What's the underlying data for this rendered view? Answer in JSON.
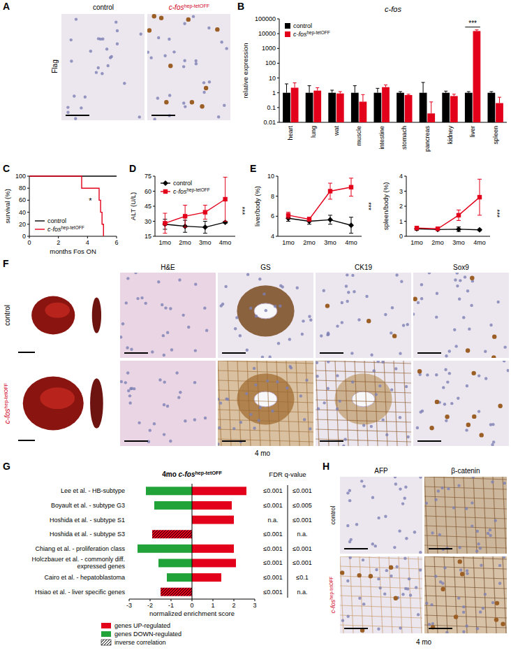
{
  "chart_data": [
    {
      "type": "bar",
      "panel_label": "B",
      "title": "c-fos",
      "y_label": "relative expression",
      "log": "y",
      "ylim": [
        0.01,
        100000
      ],
      "yticks": [
        0.01,
        0.1,
        1,
        10,
        100,
        1000,
        10000,
        100000
      ],
      "categories": [
        "heart",
        "lung",
        "wat",
        "muscle",
        "intestine",
        "stomach",
        "pancreas",
        "kidney",
        "liver",
        "spleen"
      ],
      "series": [
        {
          "name": "control",
          "color": "#000000",
          "values": [
            1,
            1,
            1,
            1,
            1,
            1,
            1,
            1,
            1,
            1
          ],
          "errors": [
            3,
            2,
            0.5,
            2,
            1,
            0.2,
            4,
            0.3,
            0.2,
            0.2
          ]
        },
        {
          "name": "c-fos hep-tetOFF",
          "color": "#e3001b",
          "values": [
            2.2,
            1.4,
            0.9,
            0.25,
            2.4,
            0.7,
            0.04,
            0.6,
            15000,
            0.2
          ],
          "errors": [
            2.5,
            0.8,
            0.3,
            0.5,
            1,
            0.1,
            0.2,
            0.2,
            3000,
            0.3
          ]
        }
      ],
      "legend": "upper left",
      "annotation": "***"
    },
    {
      "type": "line",
      "panel_label": "C",
      "x_label": "months Fos ON",
      "y_label": "survival (%)",
      "xlim": [
        0,
        6
      ],
      "xticks": [
        0,
        2,
        4,
        6
      ],
      "ylim": [
        0,
        100
      ],
      "yticks": [
        0,
        20,
        40,
        60,
        80,
        100
      ],
      "line_style": "step",
      "legend": "lower left",
      "annotation": "*",
      "series": [
        {
          "name": "control",
          "color": "#000000",
          "x": [
            0,
            6
          ],
          "values": [
            100,
            100
          ]
        },
        {
          "name": "c-fos hep-tetOFF",
          "color": "#e3001b",
          "x": [
            0,
            3.6,
            4.8,
            4.9,
            5,
            5.1
          ],
          "values": [
            100,
            80,
            60,
            40,
            20,
            0
          ]
        }
      ]
    },
    {
      "type": "line",
      "panel_label": "D",
      "y_label": "ALT (U/L)",
      "categories": [
        "1mo",
        "2mo",
        "3mo",
        "4mo"
      ],
      "ylim": [
        15,
        75
      ],
      "yticks": [
        15,
        30,
        45,
        60,
        75
      ],
      "legend": "upper left",
      "annotation": "***",
      "series": [
        {
          "name": "control",
          "color": "#000000",
          "marker": "diamond",
          "values": [
            27,
            25,
            24,
            29
          ],
          "errors": [
            5,
            6,
            6,
            1
          ]
        },
        {
          "name": "c-fos hep-tetOFF",
          "color": "#e3001b",
          "marker": "square",
          "values": [
            28,
            35,
            39,
            52
          ],
          "errors": [
            10,
            11,
            7,
            22
          ]
        }
      ]
    },
    {
      "type": "line",
      "panel_label": "E",
      "y_label": "liver/body (%)",
      "categories": [
        "1mo",
        "2mo",
        "3mo",
        "4mo"
      ],
      "ylim": [
        4,
        10
      ],
      "yticks": [
        4,
        6,
        8,
        10
      ],
      "annotation": "***",
      "series": [
        {
          "name": "control",
          "color": "#000000",
          "marker": "diamond",
          "values": [
            5.8,
            5.5,
            5.65,
            5.1
          ],
          "errors": [
            0.3,
            0.3,
            0.45,
            0.8
          ]
        },
        {
          "name": "c-fos hep-tetOFF",
          "color": "#e3001b",
          "marker": "square",
          "values": [
            6.1,
            5.7,
            8.5,
            8.9
          ],
          "errors": [
            0.3,
            0.2,
            0.8,
            0.9
          ]
        }
      ]
    },
    {
      "type": "line",
      "y_label": "spleen/body (%)",
      "categories": [
        "1mo",
        "2mo",
        "3mo",
        "4mo"
      ],
      "ylim": [
        0,
        4
      ],
      "yticks": [
        0,
        1,
        2,
        3,
        4
      ],
      "annotation": "***",
      "series": [
        {
          "name": "control",
          "color": "#000000",
          "marker": "diamond",
          "values": [
            0.5,
            0.45,
            0.47,
            0.43
          ],
          "errors": [
            0.1,
            0.05,
            0.15,
            0.05
          ]
        },
        {
          "name": "c-fos hep-tetOFF",
          "color": "#e3001b",
          "marker": "square",
          "values": [
            0.55,
            0.5,
            1.4,
            2.6
          ],
          "errors": [
            0.05,
            0.05,
            0.35,
            1.2
          ]
        }
      ]
    },
    {
      "type": "bar",
      "orientation": "horizontal",
      "panel_label": "G",
      "title": "4mo c-fos hep-tetOFF",
      "x_label": "normalized enrichment score",
      "xlim": [
        -3,
        3
      ],
      "xticks": [
        -3,
        -2,
        -1,
        0,
        1,
        2,
        3
      ],
      "categories": [
        "Lee et al. - HB-subtype",
        "Boyault et al. - subtype G3",
        "Hoshida et al. - subtype S1",
        "Hoshida et al. - subtype S3",
        "Chiang et al. - proliferation class",
        "Holczbauer et al. - commonly diff. expressed genes",
        "Cairo et al. - hepatoblastoma",
        "Hsiao et al. - liver specific genes"
      ],
      "series": [
        {
          "name": "genes UP-regulated",
          "color": "#e3001b",
          "values": [
            2.6,
            1.9,
            2.0,
            null,
            2.0,
            2.1,
            1.4,
            null
          ]
        },
        {
          "name": "genes DOWN-regulated",
          "color": "#22a33a",
          "values": [
            -2.2,
            -1.8,
            null,
            null,
            -2.6,
            -1.6,
            -1.2,
            null
          ]
        },
        {
          "name": "inverse correlation",
          "color": "#e3001b",
          "line_style": "hatched",
          "values": [
            null,
            null,
            null,
            -1.9,
            null,
            null,
            null,
            -1.5
          ]
        }
      ],
      "legend": "bottom",
      "fdr_header": "FDR q-value",
      "fdr_columns": [
        [
          "≤0.001",
          "≤0.001",
          "n.a.",
          "≤0.001",
          "≤0.001",
          "≤0.001",
          "≤0.001",
          "≤0.001"
        ],
        [
          "≤0.001",
          "≤0.005",
          "≤0.001",
          "n.a.",
          "≤0.001",
          "≤0.001",
          "≤0.1",
          "n.a."
        ]
      ]
    }
  ],
  "images": {
    "A": {
      "panel_label": "A",
      "row_label": "Flag",
      "columns": [
        "control",
        "c-fos hep-tetOFF"
      ]
    },
    "F": {
      "panel_label": "F",
      "rows": [
        "control",
        "c-fos hep-tetOFF"
      ],
      "columns": [
        "H&E",
        "GS",
        "CK19",
        "Sox9"
      ],
      "caption": "4 mo"
    },
    "H": {
      "panel_label": "H",
      "rows": [
        "control",
        "c-fos hep-tetOFF"
      ],
      "columns": [
        "AFP",
        "β-catenin"
      ],
      "caption": "4 mo"
    }
  }
}
